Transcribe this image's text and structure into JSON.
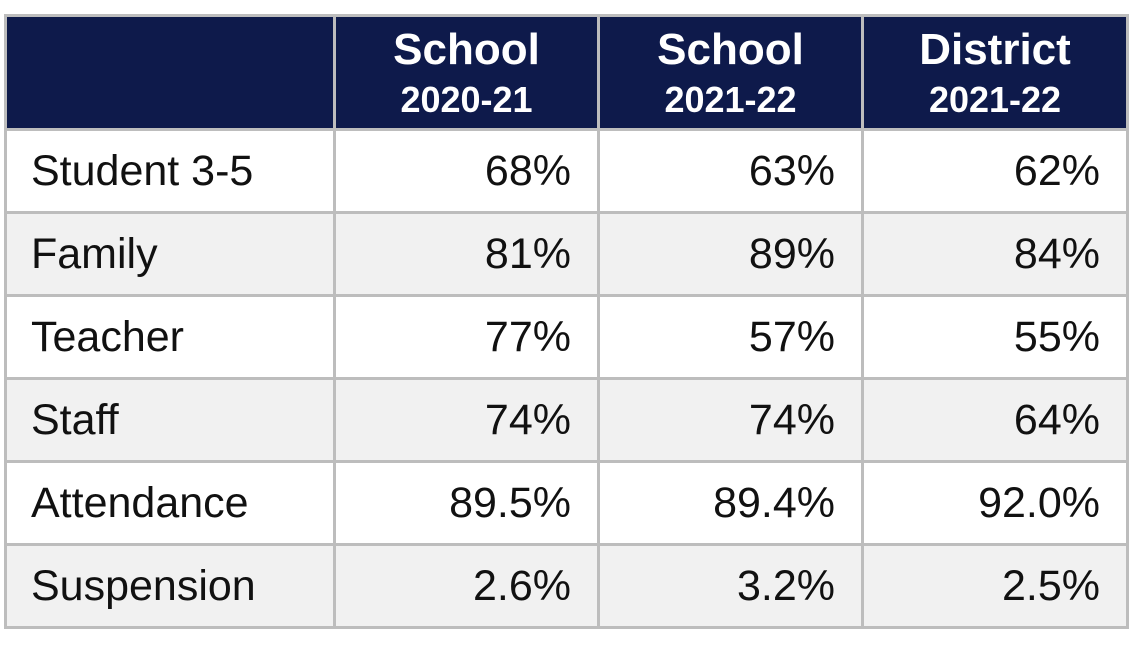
{
  "table": {
    "header": [
      {
        "title": "School",
        "period": "2020-21"
      },
      {
        "title": "School",
        "period": "2021-22"
      },
      {
        "title": "District",
        "period": "2021-22"
      }
    ],
    "rows": [
      [
        "Student 3-5",
        "68%",
        "63%",
        "62%"
      ],
      [
        "Family",
        "81%",
        "89%",
        "84%"
      ],
      [
        "Teacher",
        "77%",
        "57%",
        "55%"
      ],
      [
        "Staff",
        "74%",
        "74%",
        "64%"
      ],
      [
        "Attendance",
        "89.5%",
        "89.4%",
        "92.0%"
      ],
      [
        "Suspension",
        "2.6%",
        "3.2%",
        "2.5%"
      ]
    ]
  }
}
